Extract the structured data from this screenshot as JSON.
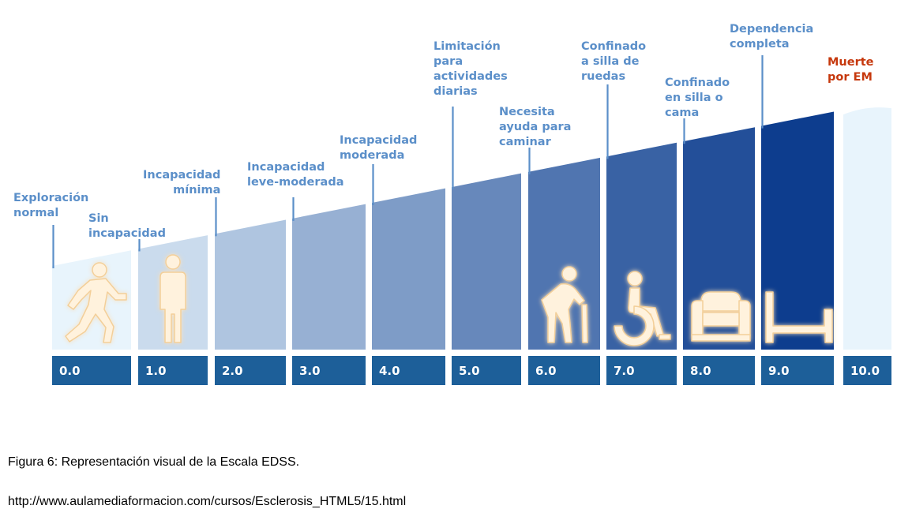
{
  "levels": [
    {
      "score": "0.0",
      "label": "Exploración\nnormal",
      "icon": "walking-person-icon"
    },
    {
      "score": "1.0",
      "label": "Sin\nincapacidad",
      "icon": "standing-person-icon"
    },
    {
      "score": "2.0",
      "label": "Incapacidad\nmínima",
      "icon": ""
    },
    {
      "score": "3.0",
      "label": "Incapacidad\nleve-moderada",
      "icon": ""
    },
    {
      "score": "4.0",
      "label": "Incapacidad\nmoderada",
      "icon": ""
    },
    {
      "score": "5.0",
      "label": "Limitación\npara\nactividades\ndiarias",
      "icon": ""
    },
    {
      "score": "6.0",
      "label": "Necesita\nayuda para\ncaminar",
      "icon": "person-with-cane-icon"
    },
    {
      "score": "7.0",
      "label": "Confinado\na silla de\nruedas",
      "icon": "wheelchair-icon"
    },
    {
      "score": "8.0",
      "label": "Confinado\nen silla o\ncama",
      "icon": "armchair-icon"
    },
    {
      "score": "9.0",
      "label": "Dependencia\ncompleta",
      "icon": "bed-icon"
    },
    {
      "score": "10.0",
      "label": "Muerte\npor EM",
      "icon": ""
    }
  ],
  "colors": {
    "label": "#5b8fc9",
    "label_death": "#c6380d",
    "score_box": "#1d5f99",
    "score_text": "#ffffff",
    "column_light": "#e8f4fc",
    "column_dark": "#0d3d8e",
    "icon": "#fff2dd",
    "icon_stroke": "#f3cf99"
  },
  "caption": {
    "figure": "Figura 6: Representación visual de la Escala EDSS.",
    "url": "http://www.aulamediaformacion.com/cursos/Esclerosis_HTML5/15.html"
  }
}
